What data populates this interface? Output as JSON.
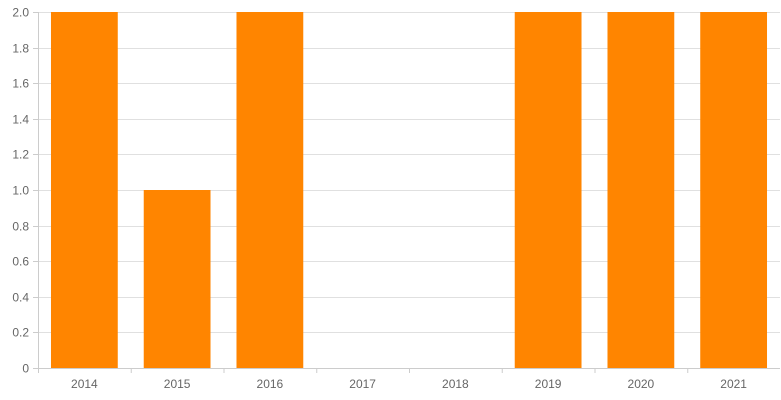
{
  "chart_data": {
    "type": "bar",
    "categories": [
      "2014",
      "2015",
      "2016",
      "2017",
      "2018",
      "2019",
      "2020",
      "2021"
    ],
    "values": [
      2,
      1,
      2,
      0,
      0,
      2,
      2,
      2
    ],
    "ylim": [
      0,
      2
    ],
    "yticks": [
      0,
      0.2,
      0.4,
      0.6,
      0.8,
      1.0,
      1.2,
      1.4,
      1.6,
      1.8,
      2.0
    ],
    "ytick_labels": [
      "0",
      "0.2",
      "0.4",
      "0.6",
      "0.8",
      "1.0",
      "1.2",
      "1.4",
      "1.6",
      "1.8",
      "2.0"
    ],
    "bar_color": "#ff8500",
    "grid": true,
    "legend": "none"
  }
}
